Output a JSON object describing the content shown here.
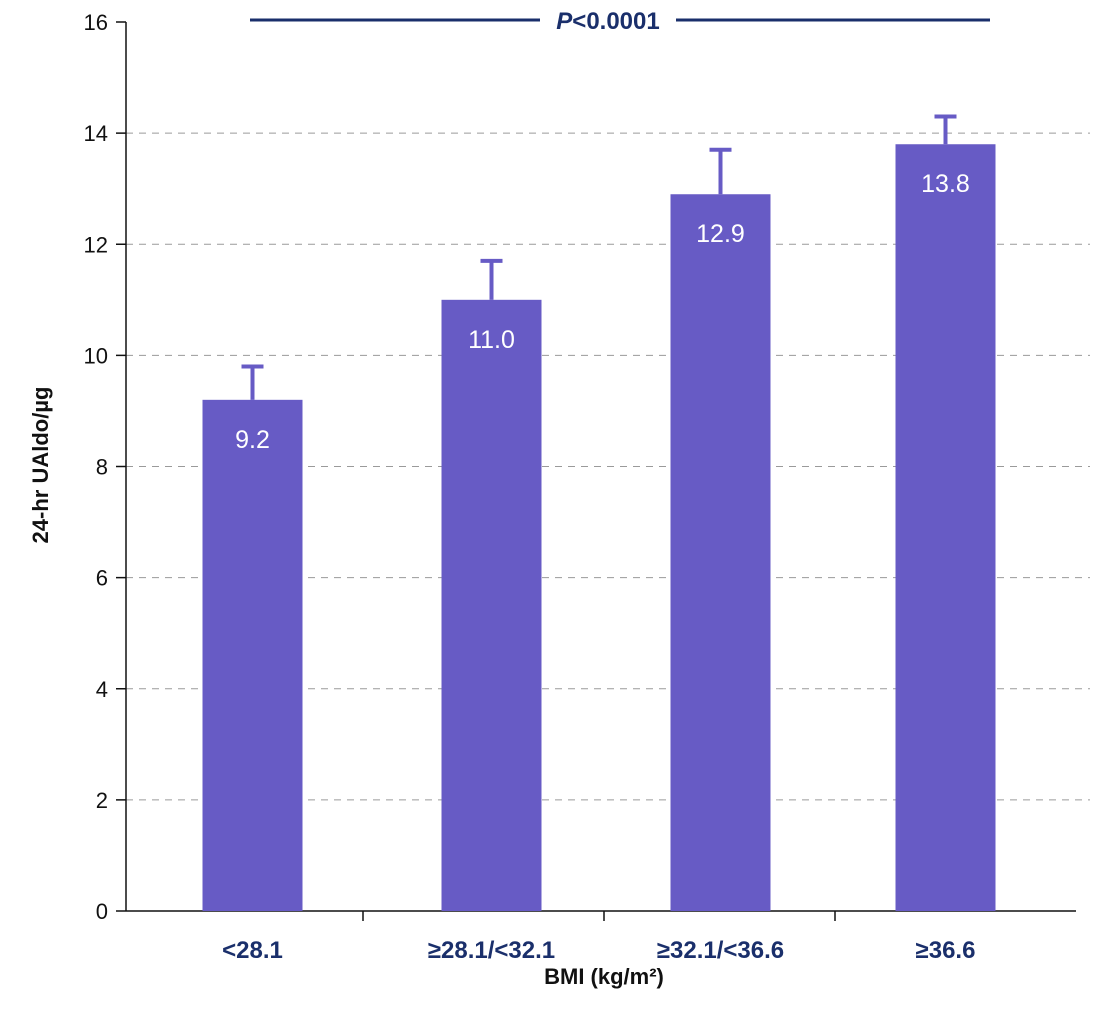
{
  "chart_data": {
    "type": "bar",
    "categories": [
      "<28.1",
      "≥28.1/<32.1",
      "≥32.1/<36.6",
      "≥36.6"
    ],
    "values": [
      9.2,
      11.0,
      12.9,
      13.8
    ],
    "error_upper": [
      9.8,
      11.7,
      13.7,
      14.3
    ],
    "data_labels": [
      "9.2",
      "11.0",
      "12.9",
      "13.8"
    ],
    "xlabel": "BMI (kg/m²)",
    "ylabel": "24-hr UAldo/µg",
    "ylim": [
      0,
      16
    ],
    "yticks": [
      0,
      2,
      4,
      6,
      8,
      10,
      12,
      14,
      16
    ],
    "grid": true,
    "significance": {
      "label": "P<0.0001",
      "italic_part": "P",
      "rest_part": "<0.0001",
      "from_category": 0,
      "to_category": 3
    },
    "colors": {
      "bar": "#675bc5",
      "axis": "#111111",
      "grid": "#9a9a9a",
      "significance_line": "#1a2f6b"
    }
  }
}
